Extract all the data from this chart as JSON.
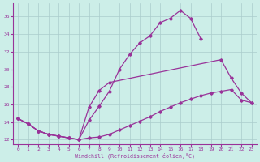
{
  "xlabel": "Windchill (Refroidissement éolien,°C)",
  "bg_color": "#cceee8",
  "grid_color": "#aacccc",
  "line_color": "#993399",
  "xlim": [
    -0.5,
    23.5
  ],
  "ylim": [
    21.5,
    37.5
  ],
  "xticks": [
    0,
    1,
    2,
    3,
    4,
    5,
    6,
    7,
    8,
    9,
    10,
    11,
    12,
    13,
    14,
    15,
    16,
    17,
    18,
    19,
    20,
    21,
    22,
    23
  ],
  "yticks": [
    22,
    24,
    26,
    28,
    30,
    32,
    34,
    36
  ],
  "line1_x": [
    0,
    1,
    2,
    3,
    4,
    5,
    6,
    7,
    8,
    9,
    10,
    11,
    12,
    13,
    14,
    15,
    16,
    17,
    18,
    19,
    20,
    21,
    22,
    23
  ],
  "line1_y": [
    24.4,
    23.8,
    23.0,
    22.6,
    22.4,
    22.2,
    22.0,
    22.2,
    22.3,
    22.6,
    23.1,
    23.6,
    24.1,
    24.6,
    25.2,
    25.7,
    26.2,
    26.6,
    27.0,
    27.3,
    27.5,
    27.7,
    26.5,
    26.2
  ],
  "line2_x": [
    0,
    1,
    2,
    3,
    4,
    5,
    6,
    7,
    8,
    9,
    10,
    11,
    12,
    13,
    14,
    15,
    16,
    17,
    18
  ],
  "line2_y": [
    24.4,
    23.8,
    23.0,
    22.6,
    22.4,
    22.2,
    22.0,
    24.2,
    25.8,
    27.5,
    30.0,
    31.7,
    33.0,
    33.8,
    35.3,
    35.8,
    36.7,
    35.8,
    33.5
  ],
  "line3_x": [
    0,
    1,
    2,
    3,
    4,
    5,
    6,
    7,
    8,
    9,
    10,
    11,
    12,
    13,
    14,
    15,
    16,
    17,
    18,
    19,
    20,
    21,
    22,
    23
  ],
  "line3_y": [
    24.4,
    23.8,
    23.0,
    22.6,
    22.4,
    22.2,
    22.0,
    25.7,
    27.6,
    28.5,
    null,
    null,
    null,
    null,
    null,
    null,
    null,
    null,
    null,
    null,
    31.1,
    29.0,
    27.3,
    26.2
  ]
}
